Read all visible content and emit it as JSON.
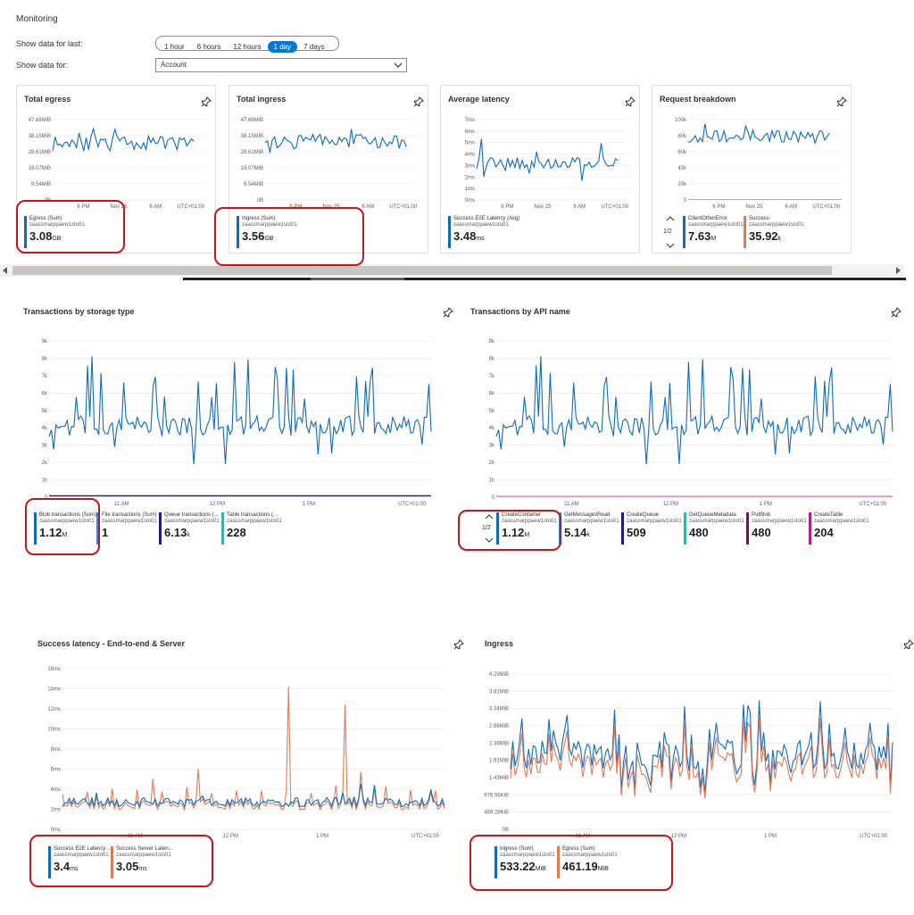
{
  "header": {
    "title": "Monitoring",
    "show_last_label": "Show data for last:",
    "time_options": [
      "1 hour",
      "6 hours",
      "12 hours",
      "1 day",
      "7 days"
    ],
    "selected_time": "1 day",
    "show_for_label": "Show data for:",
    "scope_value": "Account"
  },
  "tiles": [
    {
      "title": "Total egress",
      "yticks": [
        "47.68MiB",
        "38.15MiB",
        "28.61MiB",
        "19.07MiB",
        "9.54MiB",
        "0B"
      ],
      "xticks": [
        "6 PM",
        "Nov 25",
        "6 AM",
        "UTC+01:00"
      ],
      "legend": {
        "name": "Egress (Sum)",
        "sub": "zaassmarppaew1sto01",
        "value": "3.08",
        "unit": "GB",
        "color": "#0f6cbd"
      }
    },
    {
      "title": "Total ingress",
      "yticks": [
        "47.68MiB",
        "38.15MiB",
        "28.61MiB",
        "19.07MiB",
        "9.54MiB",
        "0B"
      ],
      "xticks": [
        "6 PM",
        "Nov 25",
        "6 AM",
        "UTC+01:00"
      ],
      "legend": {
        "name": "Ingress (Sum)",
        "sub": "zaassmarppaew1sto01",
        "value": "3.56",
        "unit": "GB",
        "color": "#0f6cbd"
      }
    },
    {
      "title": "Average latency",
      "yticks": [
        "7ms",
        "6ms",
        "5ms",
        "4ms",
        "3ms",
        "2ms",
        "1ms",
        "0ms"
      ],
      "xticks": [
        "6 PM",
        "Nov 25",
        "6 AM",
        "UTC+01:00"
      ],
      "legend": {
        "name": "Success E2E Latency (Avg)",
        "sub": "zaassmarppaew1sto01",
        "value": "3.48",
        "unit": "ms",
        "color": "#0f6cbd"
      }
    },
    {
      "title": "Request breakdown",
      "yticks": [
        "100k",
        "80k",
        "60k",
        "40k",
        "20k",
        "0"
      ],
      "xticks": [
        "6 PM",
        "Nov 25",
        "6 AM",
        "UTC+01:00"
      ],
      "pager": "1/2",
      "legends": [
        {
          "name": "ClientOtherError",
          "sub": "zaassmarppaew1sto01",
          "value": "7.63",
          "unit": "M",
          "color": "#0f6cbd"
        },
        {
          "name": "Success",
          "sub": "zaassmarppaew1sto01",
          "value": "35.92",
          "unit": "k",
          "color": "#e07b5a"
        }
      ]
    }
  ],
  "panels": [
    {
      "title": "Transactions by storage type",
      "yticks": [
        "9k",
        "8k",
        "7k",
        "6k",
        "5k",
        "4k",
        "3k",
        "2k",
        "1k",
        "0"
      ],
      "xticks": [
        "11 AM",
        "12 PM",
        "1 PM",
        "UTC+01:00"
      ],
      "legends": [
        {
          "name": "Blob transactions (Sum)",
          "sub": "zaassmarppaew1sto01",
          "value": "1.12",
          "unit": "M",
          "color": "#0f6cbd"
        },
        {
          "name": "File transactions (Sum)",
          "sub": "zaassmarppaew1sto01",
          "value": "1",
          "unit": "",
          "color": "#2d89ef"
        },
        {
          "name": "Queue transactions (...",
          "sub": "zaassmarppaew1sto01",
          "value": "6.13",
          "unit": "k",
          "color": "#1b1b8a"
        },
        {
          "name": "Table transactions (...",
          "sub": "zaassmarppaew1sto01",
          "value": "228",
          "unit": "",
          "color": "#3bb2a5"
        }
      ]
    },
    {
      "title": "Transactions by API name",
      "yticks": [
        "9k",
        "8k",
        "7k",
        "6k",
        "5k",
        "4k",
        "3k",
        "2k",
        "1k",
        "0"
      ],
      "xticks": [
        "11 AM",
        "12 PM",
        "1 PM",
        "UTC+01:00"
      ],
      "pager": "1/2",
      "legends": [
        {
          "name": "CreateContainer",
          "sub": "zaassmarppaew1sto01",
          "value": "1.12",
          "unit": "M",
          "color": "#0f6cbd"
        },
        {
          "name": "GetMessagesRead",
          "sub": "zaassmarppaew1sto01",
          "value": "5.14",
          "unit": "k",
          "color": "#2d89ef"
        },
        {
          "name": "CreateQueue",
          "sub": "zaassmarppaew1sto01",
          "value": "509",
          "unit": "",
          "color": "#1b1b8a"
        },
        {
          "name": "GetQueueMetadata",
          "sub": "zaassmarppaew1sto01",
          "value": "480",
          "unit": "",
          "color": "#3bb2a5"
        },
        {
          "name": "PutBlob",
          "sub": "zaassmarppaew1sto01",
          "value": "480",
          "unit": "",
          "color": "#5b1f4a"
        },
        {
          "name": "CreateTable",
          "sub": "zaassmarppaew1sto01",
          "value": "204",
          "unit": "",
          "color": "#c0168b"
        }
      ]
    },
    {
      "title": "Success latency - End-to-end & Server",
      "yticks": [
        "16ms",
        "14ms",
        "12ms",
        "10ms",
        "8ms",
        "6ms",
        "4ms",
        "2ms",
        "0ms"
      ],
      "xticks": [
        "11 AM",
        "12 PM",
        "1 PM",
        "UTC+01:00"
      ],
      "legends": [
        {
          "name": "Success E2E Latency ...",
          "sub": "zaassmarppaew1sto01",
          "value": "3.4",
          "unit": "ms",
          "color": "#0f6cbd"
        },
        {
          "name": "Success Server Laten...",
          "sub": "zaassmarppaew1sto01",
          "value": "3.05",
          "unit": "ms",
          "color": "#e07b5a"
        }
      ]
    },
    {
      "title": "Ingress",
      "yticks": [
        "4.29MiB",
        "3.81MiB",
        "3.34MiB",
        "2.86MiB",
        "2.38MiB",
        "1.91MiB",
        "1.43MiB",
        "976.56KiB",
        "488.28KiB",
        "0B"
      ],
      "xticks": [
        "11 AM",
        "12 PM",
        "1 PM",
        "UTC+01:00"
      ],
      "legends": [
        {
          "name": "Ingress (Sum)",
          "sub": "zaassmarppaew1sto01",
          "value": "533.22",
          "unit": "MiB",
          "color": "#0f6cbd"
        },
        {
          "name": "Egress (Sum)",
          "sub": "zaassmarppaew1sto01",
          "value": "461.19",
          "unit": "MiB",
          "color": "#e07b5a"
        }
      ]
    }
  ],
  "colors": {
    "accent": "#0078d4",
    "series_blue": "#0f6cbd",
    "series_orange": "#e07b5a",
    "highlight_red": "#c4161c"
  }
}
